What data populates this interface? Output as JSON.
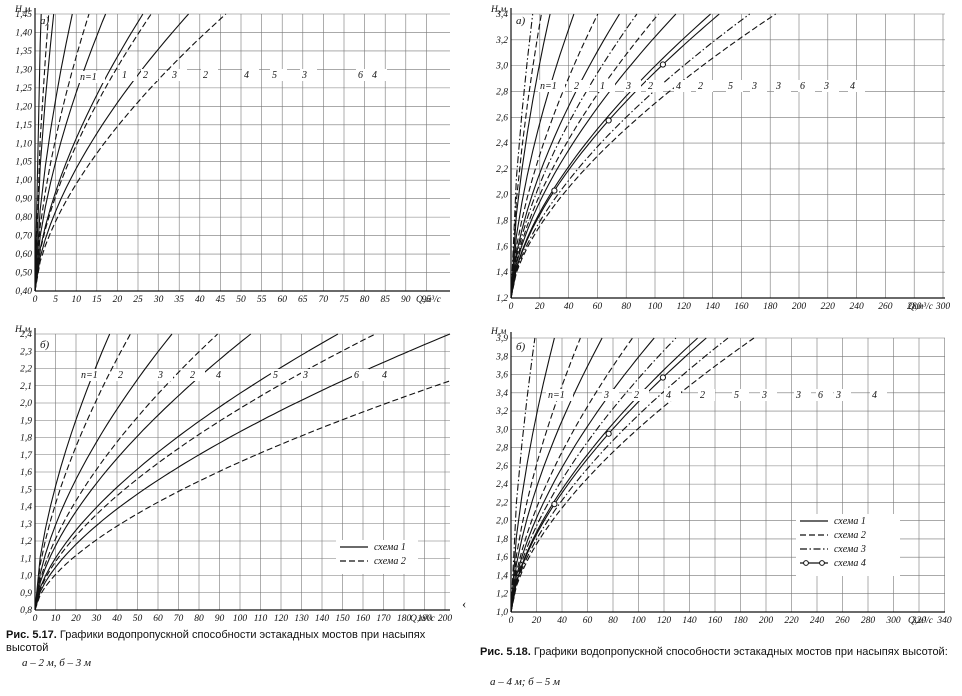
{
  "captions": {
    "left": {
      "number": "Рис. 5.17.",
      "text": "Графики водопропускной способности эстакадных мостов при насыпях высотой",
      "sub": "а – 2 м, б – 3 м"
    },
    "right": {
      "number": "Рис. 5.18.",
      "text": "Графики водопропускной способности эстакадных мостов при насыпях высотой:",
      "sub": "а – 4 м; б – 5 м"
    }
  },
  "stray_mark": "‹",
  "legend_right": {
    "items": [
      {
        "label": "схема 1",
        "style": "solid"
      },
      {
        "label": "схема 2",
        "style": "dashed"
      },
      {
        "label": "схема 3",
        "style": "dashdot"
      },
      {
        "label": "схема 4",
        "style": "circles"
      }
    ]
  },
  "chart_data": [
    {
      "id": "fig517a",
      "type": "line",
      "panel_label": "а)",
      "ylabel": "Н,м",
      "xlabel": "Q,м³/с",
      "x_ticks": [
        "0",
        "5",
        "10",
        "15",
        "20",
        "25",
        "30",
        "35",
        "40",
        "45",
        "50",
        "55",
        "60",
        "65",
        "70",
        "75",
        "80",
        "85",
        "90",
        "95"
      ],
      "y_ticks": [
        "0,40",
        "0,50",
        "0,60",
        "0,70",
        "0,80",
        "0,90",
        "1,00",
        "1,05",
        "1,10",
        "1,15",
        "1,20",
        "1,25",
        "1,30",
        "1,35",
        "1,40",
        "1,45"
      ],
      "curve_labels": [
        "n=1",
        "1",
        "2",
        "3",
        "2",
        "4",
        "5",
        "3",
        "6",
        "4"
      ],
      "curves": [
        {
          "style": "solid",
          "k": 0.015
        },
        {
          "style": "dashed",
          "k": 0.033
        },
        {
          "style": "solid",
          "k": 0.045
        },
        {
          "style": "solid",
          "k": 0.09
        },
        {
          "style": "dashed",
          "k": 0.13
        },
        {
          "style": "solid",
          "k": 0.17
        },
        {
          "style": "solid",
          "k": 0.26
        },
        {
          "style": "dashed",
          "k": 0.28
        },
        {
          "style": "solid",
          "k": 0.37
        },
        {
          "style": "dashed",
          "k": 0.46
        }
      ]
    },
    {
      "id": "fig517b",
      "type": "line",
      "panel_label": "б)",
      "ylabel": "Н,м",
      "xlabel": "Q,м³/с",
      "x_ticks": [
        "0",
        "10",
        "20",
        "30",
        "40",
        "50",
        "60",
        "70",
        "80",
        "90",
        "100",
        "110",
        "120",
        "130",
        "140",
        "150",
        "160",
        "170",
        "180",
        "190",
        "200"
      ],
      "y_ticks": [
        "0,8",
        "0,9",
        "1,0",
        "1,1",
        "1,2",
        "1,3",
        "1,4",
        "1,5",
        "1,6",
        "1,7",
        "1,8",
        "1,9",
        "2,0",
        "2,1",
        "2,2",
        "2,3",
        "2,4"
      ],
      "curve_labels": [
        "n=1",
        "2",
        "3",
        "2",
        "4",
        "5",
        "3",
        "6",
        "4"
      ],
      "curves": [
        {
          "style": "solid",
          "k": 0.18
        },
        {
          "style": "dashed",
          "k": 0.23
        },
        {
          "style": "solid",
          "k": 0.33
        },
        {
          "style": "dashed",
          "k": 0.44
        },
        {
          "style": "solid",
          "k": 0.52
        },
        {
          "style": "solid",
          "k": 0.73
        },
        {
          "style": "dashed",
          "k": 0.82
        },
        {
          "style": "solid",
          "k": 1.0
        },
        {
          "style": "dashed",
          "k": 1.35
        }
      ],
      "legend": [
        {
          "label": "схема 1",
          "style": "solid"
        },
        {
          "label": "схема 2",
          "style": "dashed"
        }
      ]
    },
    {
      "id": "fig518a",
      "type": "line",
      "panel_label": "а)",
      "ylabel": "Н,м",
      "xlabel": "Q,м³/с",
      "x_ticks": [
        "0",
        "20",
        "40",
        "60",
        "80",
        "100",
        "120",
        "140",
        "160",
        "180",
        "200",
        "220",
        "240",
        "260",
        "280",
        "300"
      ],
      "y_ticks": [
        "1,2",
        "1,4",
        "1,6",
        "1,8",
        "2,0",
        "2,2",
        "2,4",
        "2,6",
        "2,8",
        "3,0",
        "3,2",
        "3,4"
      ],
      "curve_labels": [
        "n=1",
        "2",
        "1",
        "3",
        "2",
        "4",
        "2",
        "5",
        "3",
        "3",
        "6",
        "3",
        "4"
      ],
      "curves": [
        {
          "style": "dashdot",
          "k": 0.05
        },
        {
          "style": "dashed",
          "k": 0.07
        },
        {
          "style": "solid",
          "k": 0.09
        },
        {
          "style": "solid",
          "k": 0.145
        },
        {
          "style": "dashed",
          "k": 0.2
        },
        {
          "style": "solid",
          "k": 0.25
        },
        {
          "style": "dashdot",
          "k": 0.29
        },
        {
          "style": "dashed",
          "k": 0.34
        },
        {
          "style": "solid",
          "k": 0.38
        },
        {
          "style": "solid",
          "k": 0.46
        },
        {
          "style": "circles",
          "k": 0.48
        },
        {
          "style": "dashdot",
          "k": 0.55
        },
        {
          "style": "dashed",
          "k": 0.61
        }
      ]
    },
    {
      "id": "fig518b",
      "type": "line",
      "panel_label": "б)",
      "ylabel": "Н,м",
      "xlabel": "Q,м³/с",
      "x_ticks": [
        "0",
        "20",
        "40",
        "60",
        "80",
        "100",
        "120",
        "140",
        "160",
        "180",
        "200",
        "220",
        "240",
        "260",
        "280",
        "300",
        "320",
        "340"
      ],
      "y_ticks": [
        "1,0",
        "1,2",
        "1,4",
        "1,6",
        "1,8",
        "2,0",
        "2,2",
        "2,4",
        "2,6",
        "2,8",
        "3,0",
        "3,2",
        "3,4",
        "3,6",
        "3,8",
        "3,9"
      ],
      "curve_labels": [
        "n=1",
        "3",
        "2",
        "4",
        "2",
        "5",
        "3",
        "3",
        "6",
        "3",
        "4"
      ],
      "curves": [
        {
          "style": "dashdot",
          "k": 0.055
        },
        {
          "style": "solid",
          "k": 0.1
        },
        {
          "style": "dashed",
          "k": 0.16
        },
        {
          "style": "solid",
          "k": 0.21
        },
        {
          "style": "dashed",
          "k": 0.28
        },
        {
          "style": "solid",
          "k": 0.33
        },
        {
          "style": "dashdot",
          "k": 0.38
        },
        {
          "style": "solid",
          "k": 0.43
        },
        {
          "style": "circles",
          "k": 0.45
        },
        {
          "style": "dashdot",
          "k": 0.5
        },
        {
          "style": "dashed",
          "k": 0.56
        }
      ],
      "legend": [
        {
          "label": "схема 1",
          "style": "solid"
        },
        {
          "label": "схема 2",
          "style": "dashed"
        },
        {
          "label": "схема 3",
          "style": "dashdot"
        },
        {
          "label": "схема 4",
          "style": "circles"
        }
      ]
    }
  ]
}
